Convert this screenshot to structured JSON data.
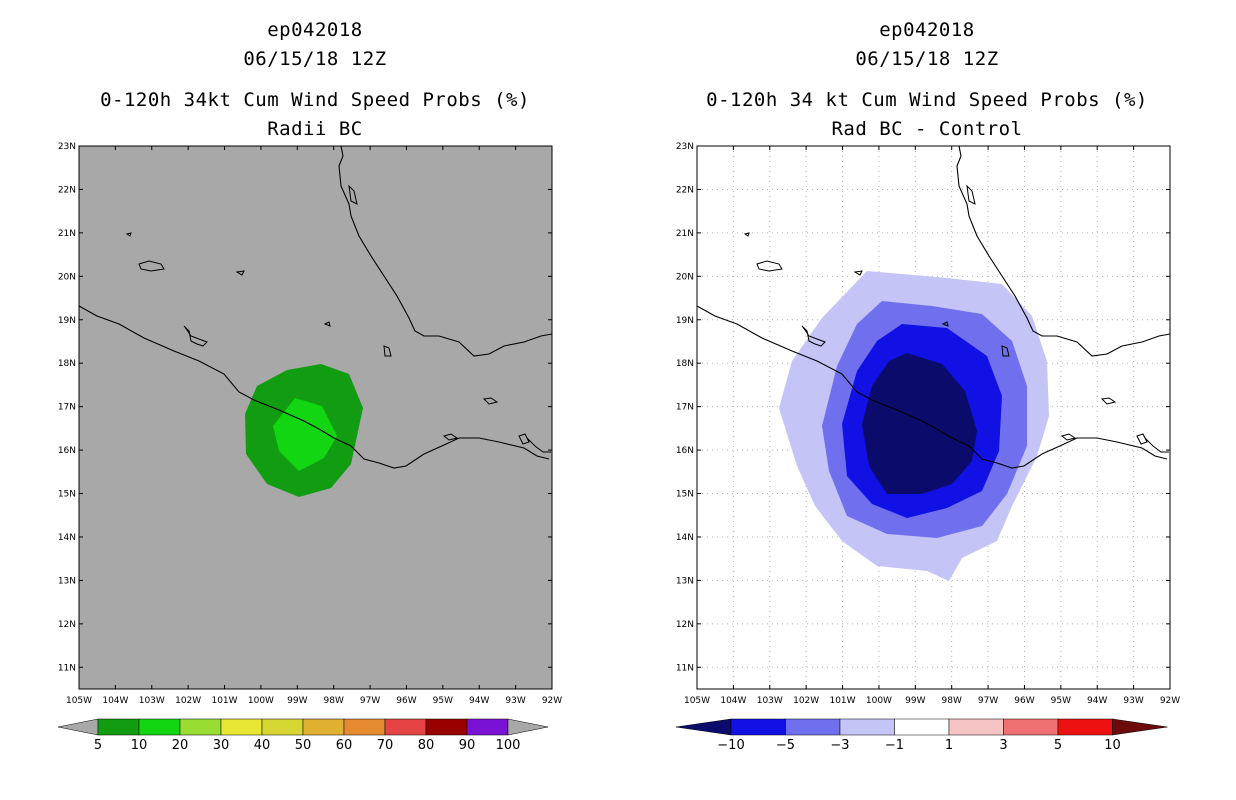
{
  "colors": {
    "panel_left_bg": "#a8a8a8",
    "panel_right_bg": "#ffffff",
    "prob_5": "#119c11",
    "prob_10": "#11d611",
    "diff_m10": "#0b0b6b",
    "diff_m5": "#1111e6",
    "diff_m3": "#7070ee",
    "diff_m1": "#c4c4f6",
    "grid": "#b4b4b4",
    "coast": "#000000"
  },
  "panels": [
    {
      "id": "left",
      "title_line1": "ep042018",
      "title_line2": "06/15/18 12Z",
      "title_line3": "0-120h 34kt Cum Wind Speed Probs (%)",
      "title_line4": "Radii BC"
    },
    {
      "id": "right",
      "title_line1": "ep042018",
      "title_line2": "06/15/18 12Z",
      "title_line3": "0-120h 34 kt Cum Wind Speed Probs (%)",
      "title_line4": "Rad BC - Control"
    }
  ],
  "axes": {
    "lat_labels": [
      "23N",
      "22N",
      "21N",
      "20N",
      "19N",
      "18N",
      "17N",
      "16N",
      "15N",
      "14N",
      "13N",
      "12N",
      "11N"
    ],
    "lon_labels": [
      "105W",
      "104W",
      "103W",
      "102W",
      "101W",
      "100W",
      "99W",
      "98W",
      "97W",
      "96W",
      "95W",
      "94W",
      "93W",
      "92W"
    ]
  },
  "colorbar_left": {
    "labels": [
      "5",
      "10",
      "20",
      "30",
      "40",
      "50",
      "60",
      "70",
      "80",
      "90",
      "100"
    ],
    "colors": [
      "#119c11",
      "#11d611",
      "#99dd33",
      "#e6e633",
      "#d6d633",
      "#e0b030",
      "#e68a30",
      "#e64444",
      "#9a0000",
      "#7a12d6"
    ]
  },
  "colorbar_right": {
    "labels": [
      "-10",
      "-5",
      "-3",
      "-1",
      "1",
      "3",
      "5",
      "10"
    ],
    "colors": [
      "#0b0b6b",
      "#1111e6",
      "#7070ee",
      "#c4c4f6",
      "#ffffff",
      "#f6c4c4",
      "#ee7070",
      "#ee1111",
      "#6b0b0b"
    ]
  }
}
